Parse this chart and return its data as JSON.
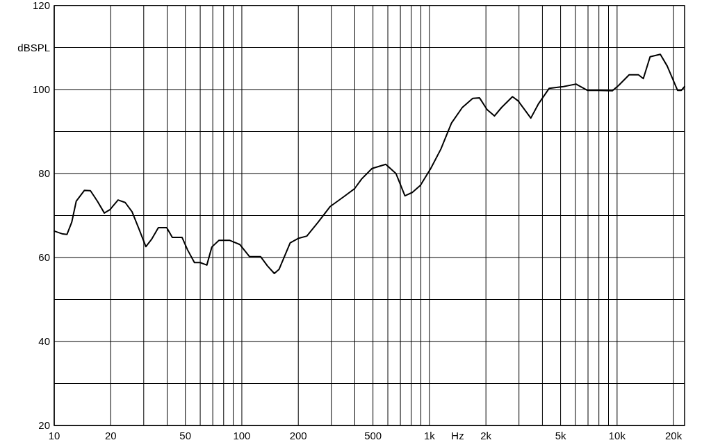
{
  "chart_data": {
    "type": "line",
    "xlabel": "Hz",
    "ylabel": "dBSPL",
    "log": "x",
    "grid": true,
    "marker": "none",
    "line_style": "solid",
    "xlim": [
      10,
      22900
    ],
    "ylim": [
      20,
      120
    ],
    "xticks": [
      10,
      20,
      {
        "value": 30,
        "label": null
      },
      {
        "value": 40,
        "label": null
      },
      50,
      {
        "value": 60,
        "label": null
      },
      {
        "value": 70,
        "label": null
      },
      {
        "value": 80,
        "label": null
      },
      {
        "value": 90,
        "label": null
      },
      100,
      200,
      {
        "value": 300,
        "label": null
      },
      {
        "value": 400,
        "label": null
      },
      500,
      {
        "value": 600,
        "label": null
      },
      {
        "value": 700,
        "label": null
      },
      {
        "value": 800,
        "label": null
      },
      {
        "value": 900,
        "label": null
      },
      {
        "value": 1000,
        "label": "1k"
      },
      {
        "value": 2000,
        "label": "2k"
      },
      {
        "value": 3000,
        "label": null
      },
      {
        "value": 4000,
        "label": null
      },
      {
        "value": 5000,
        "label": "5k"
      },
      {
        "value": 6000,
        "label": null
      },
      {
        "value": 7000,
        "label": null
      },
      {
        "value": 8000,
        "label": null
      },
      {
        "value": 9000,
        "label": null
      },
      {
        "value": 10000,
        "label": "10k"
      },
      {
        "value": 20000,
        "label": "20k"
      }
    ],
    "yticks": [
      20,
      {
        "value": 30,
        "label": null
      },
      40,
      {
        "value": 50,
        "label": null
      },
      60,
      {
        "value": 70,
        "label": null
      },
      80,
      {
        "value": 90,
        "label": null
      },
      100,
      {
        "value": 110,
        "label": null
      },
      120
    ],
    "series": [
      {
        "color": "#000000",
        "x": [
          10,
          11.1,
          11.7,
          12.4,
          13.1,
          14.5,
          15.6,
          17,
          18.5,
          19.8,
          21.9,
          23.9,
          26,
          28.3,
          30.8,
          33,
          35.9,
          39.8,
          42.6,
          48,
          51.4,
          55.9,
          59.9,
          65.1,
          69.2,
          75.5,
          85.9,
          97.5,
          110,
          126,
          137,
          149,
          158,
          181,
          201,
          222,
          255,
          295,
          350,
          399,
          435,
          494,
          585,
          663,
          740,
          810,
          895,
          1016,
          1150,
          1310,
          1495,
          1700,
          1850,
          2030,
          2220,
          2420,
          2770,
          2970,
          3470,
          3800,
          4350,
          5180,
          6040,
          6940,
          7950,
          9440,
          10200,
          11600,
          13000,
          13800,
          15000,
          17000,
          18500,
          21000,
          22000,
          22900
        ],
        "values": [
          66.3,
          65.6,
          65.5,
          68.4,
          73.4,
          76,
          75.9,
          73.4,
          70.6,
          71.4,
          73.7,
          73.1,
          70.9,
          66.8,
          62.6,
          64.3,
          67.1,
          67.1,
          64.8,
          64.8,
          61.8,
          58.8,
          58.8,
          58.2,
          62.5,
          64.1,
          64.1,
          63.1,
          60.2,
          60.2,
          58,
          56.2,
          57.2,
          63.5,
          64.6,
          65.1,
          68.4,
          72.1,
          74.5,
          76.4,
          78.7,
          81.2,
          82.2,
          80,
          74.7,
          75.5,
          77.2,
          81.2,
          85.8,
          92,
          95.7,
          97.9,
          98,
          95.2,
          93.7,
          95.7,
          98.3,
          97.3,
          93.2,
          96.5,
          100.3,
          100.7,
          101.3,
          99.8,
          99.8,
          99.7,
          101,
          103.5,
          103.5,
          102.6,
          107.8,
          108.4,
          105.6,
          99.8,
          99.8,
          100.7
        ]
      }
    ]
  }
}
